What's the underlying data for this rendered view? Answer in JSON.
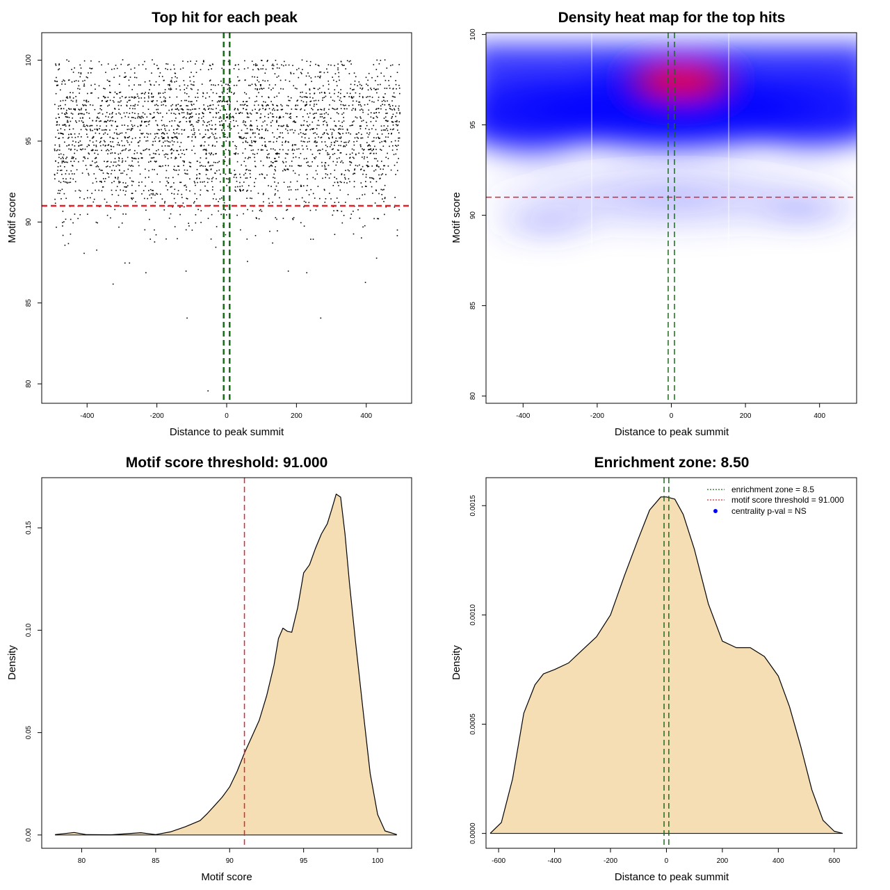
{
  "colors": {
    "threshold_line": "#e8202a",
    "zone_line": "#1a6b1a",
    "density_fill": "#f5deb3",
    "heat_low": "#ffffff",
    "heat_mid": "#0000ff",
    "heat_high": "#ff0000",
    "legend_dot": "#0000ff"
  },
  "chart_data": [
    {
      "id": "scatter",
      "type": "scatter",
      "title": "Top hit for each peak",
      "xlabel": "Distance to peak summit",
      "ylabel": "Motif score",
      "xlim": [
        -530,
        530
      ],
      "ylim": [
        78.8,
        101.7
      ],
      "xticks": [
        -400,
        -200,
        0,
        200,
        400
      ],
      "yticks": [
        80,
        85,
        90,
        95,
        100
      ],
      "points_summary": {
        "count": 3000,
        "x_range": [
          -495,
          495
        ],
        "score_peak": 97.3,
        "notes_visible": "dense dark points mostly between 91 and 100"
      },
      "outliers": [
        {
          "x": -55,
          "y": 79.6
        },
        {
          "x": -115,
          "y": 84.1
        },
        {
          "x": 268,
          "y": 84.1
        },
        {
          "x": -327,
          "y": 86.2
        },
        {
          "x": 396,
          "y": 86.3
        },
        {
          "x": -233,
          "y": 86.9
        },
        {
          "x": -118,
          "y": 87.0
        },
        {
          "x": 175,
          "y": 87.0
        },
        {
          "x": 228,
          "y": 86.9
        },
        {
          "x": -293,
          "y": 87.5
        },
        {
          "x": -280,
          "y": 87.5
        },
        {
          "x": 58,
          "y": 87.6
        },
        {
          "x": 428,
          "y": 87.8
        },
        {
          "x": -465,
          "y": 88.6
        },
        {
          "x": -455,
          "y": 88.7
        },
        {
          "x": -374,
          "y": 88.3
        },
        {
          "x": -410,
          "y": 88.1
        }
      ],
      "hlines": [
        {
          "y": 91.0,
          "style": "dashed",
          "color_key": "threshold_line"
        }
      ],
      "vlines": [
        {
          "x": -8.5,
          "style": "dashed",
          "color_key": "zone_line"
        },
        {
          "x": 8.5,
          "style": "dashed",
          "color_key": "zone_line"
        }
      ]
    },
    {
      "id": "heatmap",
      "type": "heatmap",
      "title": "Density heat map for the top hits",
      "xlabel": "Distance to peak summit",
      "ylabel": "Motif score",
      "xlim": [
        -400,
        500
      ],
      "xlim_full": [
        -500,
        500
      ],
      "ylim": [
        79.6,
        100.1
      ],
      "xticks": [
        -400,
        -200,
        0,
        200,
        400
      ],
      "yticks": [
        80,
        85,
        90,
        95,
        100
      ],
      "hotspot": {
        "x": 25,
        "y": 97.4
      },
      "hlines": [
        {
          "y": 91.0,
          "style": "dashed",
          "color_key": "threshold_line"
        }
      ],
      "vlines": [
        {
          "x": -8.5,
          "style": "dashed",
          "color_key": "zone_line"
        },
        {
          "x": 8.5,
          "style": "dashed",
          "color_key": "zone_line"
        }
      ]
    },
    {
      "id": "score-density",
      "type": "area",
      "title": "Motif score threshold: 91.000",
      "xlabel": "Motif score",
      "ylabel": "Density",
      "xlim": [
        77.3,
        102.3
      ],
      "ylim": [
        -0.0065,
        0.1745
      ],
      "xticks": [
        80,
        85,
        90,
        95,
        100
      ],
      "yticks": [
        0.0,
        0.05,
        0.1,
        0.15
      ],
      "ytick_labels": [
        "0.00",
        "0.05",
        "0.10",
        "0.15"
      ],
      "x": [
        78.2,
        79.5,
        80.3,
        82.0,
        84.0,
        85.0,
        86.0,
        87.0,
        88.0,
        88.5,
        89.0,
        89.5,
        90.0,
        90.5,
        91.0,
        91.5,
        92.0,
        92.5,
        93.0,
        93.3,
        93.6,
        93.9,
        94.2,
        94.6,
        95.0,
        95.4,
        95.8,
        96.2,
        96.6,
        96.9,
        97.2,
        97.5,
        97.8,
        98.1,
        98.5,
        99.0,
        99.5,
        100.0,
        100.5,
        101.3
      ],
      "y": [
        0.0002,
        0.0012,
        0.0002,
        0.0001,
        0.0011,
        0.0002,
        0.0015,
        0.004,
        0.007,
        0.0105,
        0.0145,
        0.0185,
        0.0235,
        0.031,
        0.04,
        0.048,
        0.056,
        0.068,
        0.083,
        0.096,
        0.101,
        0.0995,
        0.099,
        0.111,
        0.128,
        0.132,
        0.14,
        0.147,
        0.152,
        0.159,
        0.1665,
        0.165,
        0.147,
        0.123,
        0.095,
        0.062,
        0.03,
        0.01,
        0.002,
        0.0002
      ],
      "vlines": [
        {
          "x": 91.0,
          "style": "dashed",
          "color_key": "threshold_line"
        }
      ]
    },
    {
      "id": "distance-density",
      "type": "area",
      "title": "Enrichment zone: 8.50",
      "xlabel": "Distance to peak summit",
      "ylabel": "Density",
      "xlim": [
        -645,
        680
      ],
      "ylim": [
        -6.8e-05,
        0.001628
      ],
      "xticks": [
        -600,
        -400,
        -200,
        0,
        200,
        400,
        600
      ],
      "yticks": [
        0.0,
        0.0005,
        0.001,
        0.0015
      ],
      "ytick_labels": [
        "0.0000",
        "0.0005",
        "0.0010",
        "0.0015"
      ],
      "x": [
        -630,
        -590,
        -550,
        -510,
        -470,
        -440,
        -400,
        -350,
        -300,
        -250,
        -200,
        -150,
        -100,
        -60,
        -20,
        0,
        30,
        60,
        100,
        150,
        200,
        250,
        300,
        350,
        400,
        440,
        480,
        520,
        560,
        600,
        630
      ],
      "y": [
        0.0,
        5e-05,
        0.00025,
        0.00055,
        0.00068,
        0.00073,
        0.00075,
        0.00078,
        0.00084,
        0.0009,
        0.001,
        0.00118,
        0.00135,
        0.00148,
        0.00154,
        0.00154,
        0.00153,
        0.00146,
        0.0013,
        0.00105,
        0.00088,
        0.00085,
        0.00085,
        0.00081,
        0.00072,
        0.00058,
        0.0004,
        0.0002,
        6e-05,
        1e-05,
        0.0
      ],
      "vlines": [
        {
          "x": -8.5,
          "style": "dashed",
          "color_key": "zone_line"
        },
        {
          "x": 8.5,
          "style": "dashed",
          "color_key": "zone_line"
        }
      ],
      "legend": {
        "placement": "top-right",
        "entries": [
          {
            "label": "enrichment zone = 8.5",
            "style": "dotted",
            "color_key": "zone_line"
          },
          {
            "label": "motif score threshold = 91.000",
            "style": "dotted",
            "color_key": "threshold_line"
          },
          {
            "label": "centrality p-val = NS",
            "style": "dot",
            "color_key": "legend_dot"
          }
        ]
      }
    }
  ]
}
